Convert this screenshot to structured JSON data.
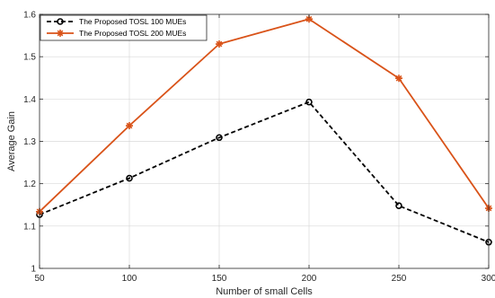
{
  "chart_data": {
    "type": "line",
    "title": "",
    "xlabel": "Number of small Cells",
    "ylabel": "Average Gain",
    "x": [
      50,
      100,
      150,
      200,
      250,
      300
    ],
    "xticks": [
      "50",
      "100",
      "150",
      "200",
      "250",
      "300"
    ],
    "xlim": [
      50,
      300
    ],
    "yticks": [
      "1",
      "1.1",
      "1.2",
      "1.3",
      "1.4",
      "1.5",
      "1.6"
    ],
    "ylim": [
      1.0,
      1.6
    ],
    "grid": true,
    "legend_position": "top-left",
    "series": [
      {
        "name": "The Proposed TOSL 100 MUEs",
        "values": [
          1.127,
          1.213,
          1.309,
          1.393,
          1.148,
          1.062
        ],
        "color": "#000000",
        "line_style": "dashed",
        "marker": "circle"
      },
      {
        "name": "The Proposed TOSL 200 MUEs",
        "values": [
          1.134,
          1.337,
          1.53,
          1.589,
          1.449,
          1.142
        ],
        "color": "#D95319",
        "line_style": "solid",
        "marker": "star"
      }
    ]
  }
}
